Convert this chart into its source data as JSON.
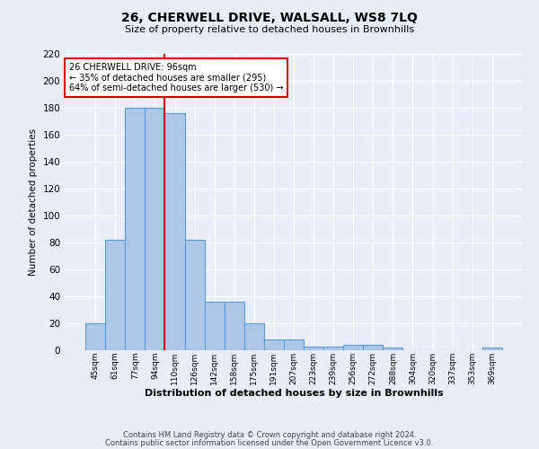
{
  "title": "26, CHERWELL DRIVE, WALSALL, WS8 7LQ",
  "subtitle": "Size of property relative to detached houses in Brownhills",
  "xlabel": "Distribution of detached houses by size in Brownhills",
  "ylabel": "Number of detached properties",
  "categories": [
    "45sqm",
    "61sqm",
    "77sqm",
    "94sqm",
    "110sqm",
    "126sqm",
    "142sqm",
    "158sqm",
    "175sqm",
    "191sqm",
    "207sqm",
    "223sqm",
    "239sqm",
    "256sqm",
    "272sqm",
    "288sqm",
    "304sqm",
    "320sqm",
    "337sqm",
    "353sqm",
    "369sqm"
  ],
  "values": [
    20,
    82,
    180,
    180,
    176,
    82,
    36,
    36,
    20,
    8,
    8,
    3,
    3,
    4,
    4,
    2,
    0,
    0,
    0,
    0,
    2
  ],
  "bar_color": "#aec6e8",
  "bar_edge_color": "#5b9bd5",
  "background_color": "#e8eef7",
  "grid_color": "#ffffff",
  "property_line_x": 3.5,
  "annotation_line1": "26 CHERWELL DRIVE: 96sqm",
  "annotation_line2": "← 35% of detached houses are smaller (295)",
  "annotation_line3": "64% of semi-detached houses are larger (530) →",
  "annotation_box_color": "#ffffff",
  "annotation_box_edge_color": "#cc0000",
  "vline_color": "#cc0000",
  "ylim": [
    0,
    220
  ],
  "yticks": [
    0,
    20,
    40,
    60,
    80,
    100,
    120,
    140,
    160,
    180,
    200,
    220
  ],
  "footer_line1": "Contains HM Land Registry data © Crown copyright and database right 2024.",
  "footer_line2": "Contains public sector information licensed under the Open Government Licence v3.0."
}
